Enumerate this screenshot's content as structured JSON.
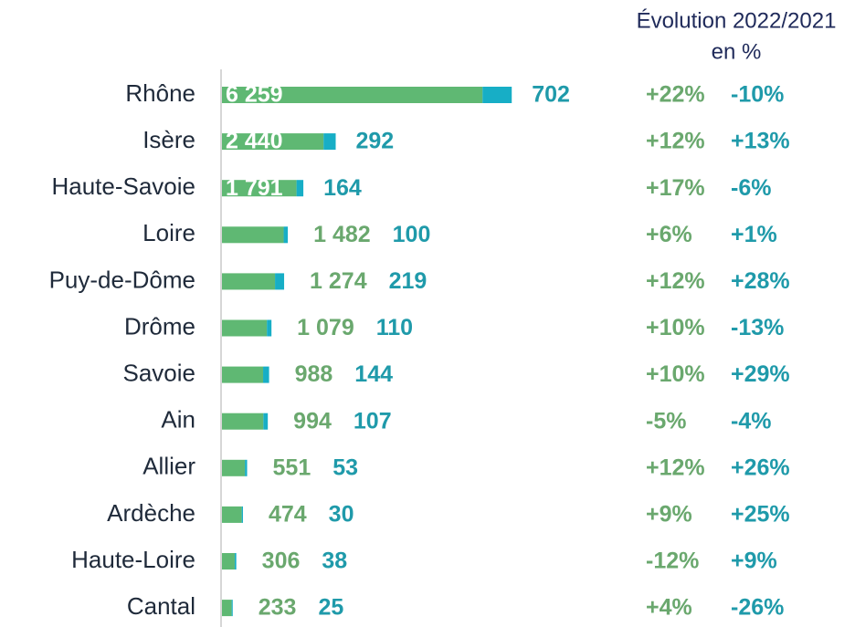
{
  "chart_data": {
    "type": "stacked_barh",
    "evolution_header": [
      "Évolution 2022/2021",
      "en %"
    ],
    "categories": [
      "Rhône",
      "Isère",
      "Haute-Savoie",
      "Loire",
      "Puy-de-Dôme",
      "Drôme",
      "Savoie",
      "Ain",
      "Allier",
      "Ardèche",
      "Haute-Loire",
      "Cantal"
    ],
    "series": [
      {
        "color": "#5fb873",
        "values": [
          6259,
          2440,
          1791,
          1482,
          1274,
          1079,
          988,
          994,
          551,
          474,
          306,
          233
        ],
        "value_labels": [
          "6 259",
          "2 440",
          "1 791",
          "1 482",
          "1 274",
          "1 079",
          "988",
          "994",
          "551",
          "474",
          "306",
          "233"
        ],
        "evolution_labels": [
          "+22%",
          "+12%",
          "+17%",
          "+6%",
          "+12%",
          "+10%",
          "+10%",
          "-5%",
          "+12%",
          "+9%",
          "-12%",
          "+4%"
        ]
      },
      {
        "color": "#17aec6",
        "values": [
          702,
          292,
          164,
          100,
          219,
          110,
          144,
          107,
          53,
          30,
          38,
          25
        ],
        "evolution_labels": [
          "-10%",
          "+13%",
          "-6%",
          "+1%",
          "+28%",
          "-13%",
          "+29%",
          "-4%",
          "+26%",
          "+25%",
          "+9%",
          "-26%"
        ]
      }
    ],
    "xlim": [
      0,
      7000
    ]
  }
}
